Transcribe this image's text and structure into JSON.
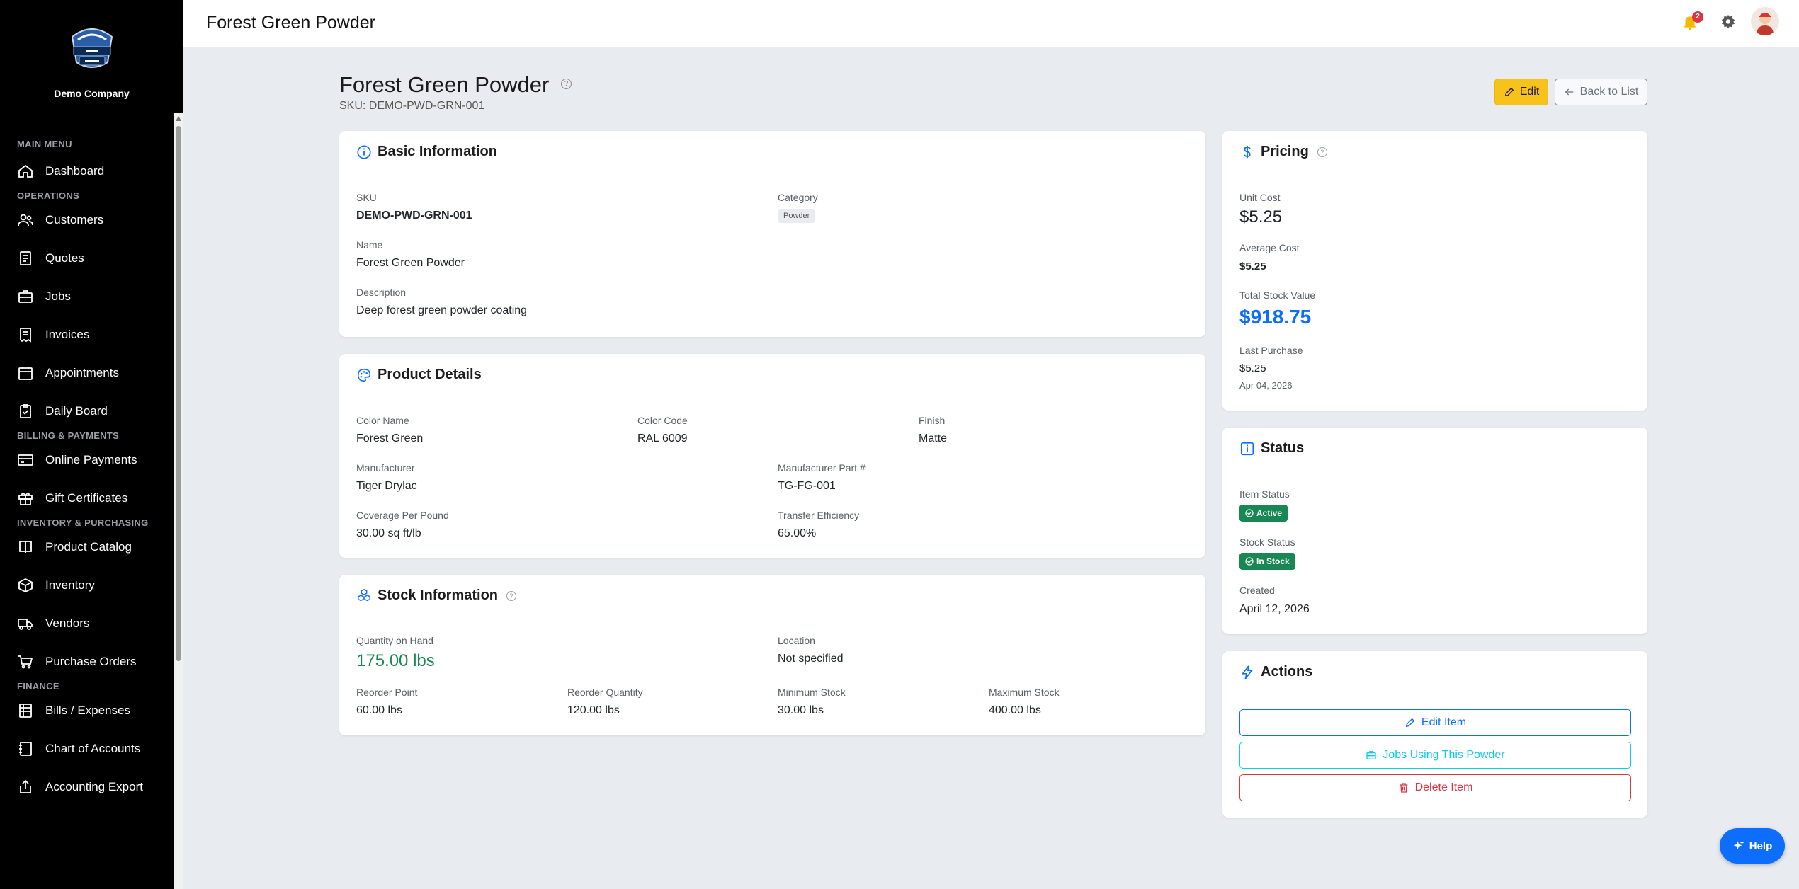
{
  "sidebar": {
    "company": "Demo Company",
    "sections": {
      "main": "MAIN MENU",
      "operations": "OPERATIONS",
      "billing": "BILLING & PAYMENTS",
      "inventory": "INVENTORY & PURCHASING",
      "finance": "FINANCE"
    },
    "items": {
      "dashboard": "Dashboard",
      "customers": "Customers",
      "quotes": "Quotes",
      "jobs": "Jobs",
      "invoices": "Invoices",
      "appointments": "Appointments",
      "daily_board": "Daily Board",
      "online_payments": "Online Payments",
      "gift_certificates": "Gift Certificates",
      "product_catalog": "Product Catalog",
      "inventory": "Inventory",
      "vendors": "Vendors",
      "purchase_orders": "Purchase Orders",
      "bills_expenses": "Bills / Expenses",
      "chart_of_accounts": "Chart of Accounts",
      "accounting_export": "Accounting Export"
    }
  },
  "header": {
    "title": "Forest Green Powder",
    "notification_count": "2"
  },
  "page": {
    "title": "Forest Green Powder",
    "sku_line": "SKU: DEMO-PWD-GRN-001",
    "edit_label": "Edit",
    "back_label": "Back to List"
  },
  "basic_info": {
    "heading": "Basic Information",
    "sku_label": "SKU",
    "sku_value": "DEMO-PWD-GRN-001",
    "category_label": "Category",
    "category_value": "Powder",
    "name_label": "Name",
    "name_value": "Forest Green Powder",
    "description_label": "Description",
    "description_value": "Deep forest green powder coating"
  },
  "product_details": {
    "heading": "Product Details",
    "color_name_label": "Color Name",
    "color_name_value": "Forest Green",
    "color_code_label": "Color Code",
    "color_code_value": "RAL 6009",
    "finish_label": "Finish",
    "finish_value": "Matte",
    "manufacturer_label": "Manufacturer",
    "manufacturer_value": "Tiger Drylac",
    "part_label": "Manufacturer Part #",
    "part_value": "TG-FG-001",
    "coverage_label": "Coverage Per Pound",
    "coverage_value": "30.00 sq ft/lb",
    "efficiency_label": "Transfer Efficiency",
    "efficiency_value": "65.00%"
  },
  "stock_info": {
    "heading": "Stock Information",
    "qty_label": "Quantity on Hand",
    "qty_value": "175.00 lbs",
    "location_label": "Location",
    "location_value": "Not specified",
    "reorder_point_label": "Reorder Point",
    "reorder_point_value": "60.00 lbs",
    "reorder_qty_label": "Reorder Quantity",
    "reorder_qty_value": "120.00 lbs",
    "min_label": "Minimum Stock",
    "min_value": "30.00 lbs",
    "max_label": "Maximum Stock",
    "max_value": "400.00 lbs"
  },
  "pricing": {
    "heading": "Pricing",
    "unit_cost_label": "Unit Cost",
    "unit_cost_value": "$5.25",
    "avg_cost_label": "Average Cost",
    "avg_cost_value": "$5.25",
    "total_value_label": "Total Stock Value",
    "total_value_value": "$918.75",
    "last_purchase_label": "Last Purchase",
    "last_purchase_value": "$5.25",
    "last_purchase_date": "Apr 04, 2026"
  },
  "status": {
    "heading": "Status",
    "item_status_label": "Item Status",
    "item_status_value": "Active",
    "stock_status_label": "Stock Status",
    "stock_status_value": "In Stock",
    "created_label": "Created",
    "created_value": "April 12, 2026"
  },
  "actions": {
    "heading": "Actions",
    "edit_label": "Edit Item",
    "jobs_label": "Jobs Using This Powder",
    "delete_label": "Delete Item"
  },
  "help_button": "Help",
  "colors": {
    "sidebar_bg": "#000000",
    "accent_blue": "#0d6efd",
    "success_green": "#198754",
    "warning_yellow": "#f8c21c",
    "danger_red": "#dc3545",
    "info_cyan": "#0dcaf0"
  }
}
